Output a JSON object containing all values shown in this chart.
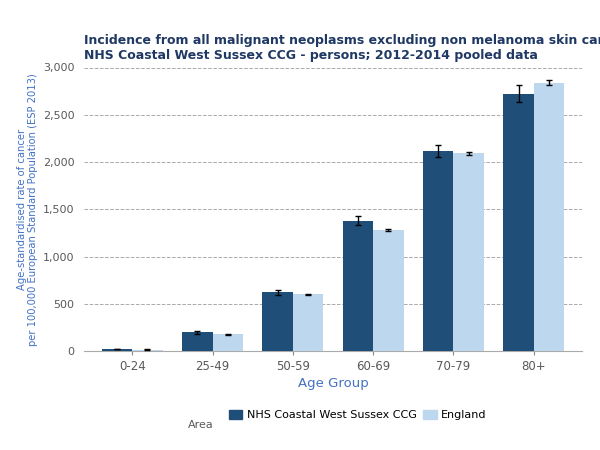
{
  "title_line1": "Incidence from all malignant neoplasms excluding non melanoma skin cancer",
  "title_line2": "NHS Coastal West Sussex CCG - persons; 2012-2014 pooled data",
  "age_groups": [
    "0-24",
    "25-49",
    "50-59",
    "60-69",
    "70-79",
    "80+"
  ],
  "ccg_values": [
    20,
    200,
    620,
    1380,
    2120,
    2720
  ],
  "eng_values": [
    15,
    175,
    600,
    1280,
    2090,
    2840
  ],
  "ccg_errors": [
    3,
    15,
    28,
    48,
    65,
    90
  ],
  "eng_errors": [
    1,
    4,
    8,
    12,
    18,
    25
  ],
  "ccg_color": "#1F4E79",
  "eng_color": "#BDD7EE",
  "ylabel": "Age-standardised rate of cancer\nper 100,000 European Standard Population (ESP 2013)",
  "xlabel": "Age Group",
  "ylim": [
    0,
    3000
  ],
  "yticks": [
    0,
    500,
    1000,
    1500,
    2000,
    2500,
    3000
  ],
  "ytick_labels": [
    "0",
    "500",
    "1,000",
    "1,500",
    "2,000",
    "2,500",
    "3,000"
  ],
  "legend_label_ccg": "NHS Coastal West Sussex CCG",
  "legend_label_eng": "England",
  "legend_area_label": "Area",
  "title_color": "#1F3864",
  "axis_label_color": "#4472C4",
  "tick_label_color": "#595959",
  "grid_color": "#AAAAAA",
  "bar_width": 0.38,
  "background_color": "#FFFFFF"
}
